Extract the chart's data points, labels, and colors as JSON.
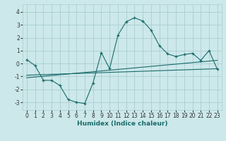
{
  "xlabel": "Humidex (Indice chaleur)",
  "bg_color": "#cce8ea",
  "grid_color": "#aacdd0",
  "line_color": "#1a6b6b",
  "xlim": [
    -0.5,
    23.5
  ],
  "ylim": [
    -3.6,
    4.6
  ],
  "yticks": [
    -3,
    -2,
    -1,
    0,
    1,
    2,
    3,
    4
  ],
  "xticks": [
    0,
    1,
    2,
    3,
    4,
    5,
    6,
    7,
    8,
    9,
    10,
    11,
    12,
    13,
    14,
    15,
    16,
    17,
    18,
    19,
    20,
    21,
    22,
    23
  ],
  "curve1_x": [
    0,
    1,
    2,
    3,
    4,
    5,
    6,
    7,
    8,
    9,
    10,
    11,
    12,
    13,
    14,
    15,
    16,
    17,
    18,
    19,
    20,
    21,
    22,
    23
  ],
  "curve1_y": [
    0.3,
    -0.15,
    -1.3,
    -1.3,
    -1.7,
    -2.8,
    -3.0,
    -3.1,
    -1.5,
    0.85,
    -0.4,
    2.2,
    3.25,
    3.55,
    3.3,
    2.6,
    1.4,
    0.75,
    0.55,
    0.7,
    0.8,
    0.25,
    1.0,
    -0.45
  ],
  "curve2_x": [
    0,
    23
  ],
  "curve2_y": [
    -0.9,
    -0.4
  ],
  "curve3_x": [
    0,
    23
  ],
  "curve3_y": [
    -1.1,
    0.25
  ],
  "tick_fontsize": 5.5,
  "xlabel_fontsize": 6.5
}
